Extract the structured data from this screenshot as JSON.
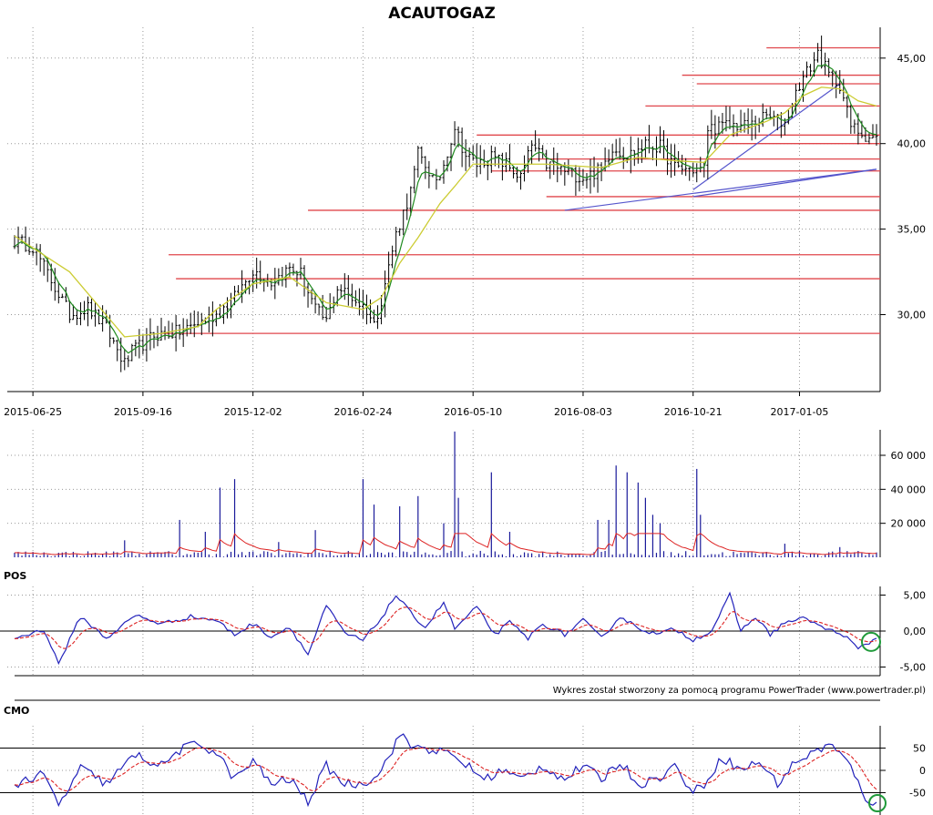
{
  "chart_data": {
    "title": "ACAUTOGAZ",
    "credit": "Wykres został stworzony za pomocą programu PowerTrader (www.powertrader.pl)",
    "x_dates": [
      "2015-06-25",
      "2015-09-16",
      "2015-12-02",
      "2016-02-24",
      "2016-05-10",
      "2016-08-03",
      "2016-10-21",
      "2017-01-05"
    ],
    "price_panel": {
      "type": "candlestick",
      "y_ticks": [
        "45,00",
        "40,00",
        "35,00",
        "30,00"
      ],
      "y_tick_values": [
        45,
        40,
        35,
        30
      ],
      "ylim": [
        25.5,
        46.8
      ],
      "close_path": [
        [
          0,
          34.3
        ],
        [
          5,
          34.0
        ],
        [
          10,
          32.0
        ],
        [
          15,
          30.0
        ],
        [
          20,
          30.4
        ],
        [
          25,
          29.2
        ],
        [
          30,
          27.1
        ],
        [
          32,
          27.8
        ],
        [
          38,
          28.8
        ],
        [
          45,
          29.0
        ],
        [
          50,
          29.5
        ],
        [
          55,
          30.0
        ],
        [
          60,
          31.0
        ],
        [
          65,
          32.6
        ],
        [
          70,
          31.9
        ],
        [
          75,
          32.7
        ],
        [
          78,
          32.4
        ],
        [
          82,
          30.3
        ],
        [
          85,
          29.6
        ],
        [
          88,
          31.6
        ],
        [
          92,
          31.0
        ],
        [
          96,
          30.3
        ],
        [
          98,
          29.4
        ],
        [
          100,
          30.9
        ],
        [
          104,
          34.7
        ],
        [
          108,
          37.2
        ],
        [
          110,
          39.4
        ],
        [
          113,
          38.4
        ],
        [
          115,
          37.5
        ],
        [
          117,
          38.8
        ],
        [
          120,
          41.0
        ],
        [
          123,
          39.3
        ],
        [
          126,
          38.8
        ],
        [
          130,
          39.2
        ],
        [
          134,
          38.8
        ],
        [
          138,
          38.0
        ],
        [
          141,
          39.9
        ],
        [
          145,
          38.8
        ],
        [
          150,
          38.4
        ],
        [
          155,
          38.0
        ],
        [
          160,
          38.5
        ],
        [
          163,
          39.8
        ],
        [
          167,
          39.3
        ],
        [
          172,
          39.9
        ],
        [
          176,
          39.8
        ],
        [
          180,
          38.6
        ],
        [
          184,
          38.5
        ],
        [
          188,
          38.5
        ],
        [
          189,
          40.9
        ],
        [
          193,
          41.0
        ],
        [
          197,
          41.1
        ],
        [
          200,
          41.0
        ],
        [
          205,
          41.6
        ],
        [
          210,
          41.2
        ],
        [
          214,
          43.5
        ],
        [
          217,
          44.5
        ],
        [
          219,
          45.3
        ],
        [
          222,
          44.0
        ],
        [
          225,
          43.5
        ],
        [
          228,
          41.0
        ],
        [
          232,
          40.5
        ],
        [
          235,
          40.3
        ]
      ],
      "sma_path": [
        [
          0,
          34.6
        ],
        [
          15,
          32.5
        ],
        [
          30,
          28.7
        ],
        [
          40,
          28.9
        ],
        [
          50,
          29.3
        ],
        [
          55,
          30.3
        ],
        [
          65,
          31.8
        ],
        [
          75,
          32.2
        ],
        [
          85,
          30.7
        ],
        [
          95,
          30.3
        ],
        [
          100,
          31.0
        ],
        [
          105,
          33.0
        ],
        [
          110,
          34.5
        ],
        [
          116,
          36.5
        ],
        [
          120,
          37.5
        ],
        [
          125,
          38.8
        ],
        [
          135,
          38.8
        ],
        [
          145,
          38.8
        ],
        [
          160,
          38.6
        ],
        [
          170,
          39.2
        ],
        [
          180,
          39.0
        ],
        [
          188,
          38.9
        ],
        [
          195,
          40.5
        ],
        [
          205,
          41.3
        ],
        [
          210,
          41.8
        ],
        [
          215,
          42.8
        ],
        [
          220,
          43.3
        ],
        [
          225,
          43.2
        ],
        [
          230,
          42.5
        ],
        [
          235,
          42.2
        ]
      ],
      "horizontal_levels": [
        45.6,
        44.0,
        43.5,
        42.2,
        40.5,
        40.0,
        39.1,
        38.4,
        36.9,
        36.1,
        33.5,
        32.1,
        28.9
      ],
      "trendlines": [
        [
          [
            150,
            36.1
          ],
          [
            235,
            38.5
          ]
        ],
        [
          [
            185,
            36.9
          ],
          [
            235,
            38.5
          ]
        ],
        [
          [
            185,
            37.3
          ],
          [
            225,
            43.5
          ]
        ]
      ]
    },
    "volume_panel": {
      "type": "bar",
      "y_ticks": [
        "60 000",
        "40 000",
        "20 000"
      ],
      "y_tick_values": [
        60000,
        40000,
        20000
      ],
      "ylim": [
        0,
        75000
      ]
    },
    "pos_panel": {
      "type": "line",
      "label": "POS",
      "y_ticks": [
        "5,00",
        "0,00",
        "-5,00"
      ],
      "y_tick_values": [
        5,
        0,
        -5
      ],
      "ylim": [
        -6.2,
        6.2
      ],
      "series_points": [
        [
          0,
          -1.0
        ],
        [
          8,
          0.2
        ],
        [
          12,
          -4.5
        ],
        [
          18,
          2.0
        ],
        [
          25,
          -1.0
        ],
        [
          33,
          2.2
        ],
        [
          40,
          1.0
        ],
        [
          48,
          2.0
        ],
        [
          55,
          1.5
        ],
        [
          60,
          -0.5
        ],
        [
          65,
          1.0
        ],
        [
          70,
          -0.8
        ],
        [
          75,
          0.6
        ],
        [
          80,
          -3.3
        ],
        [
          85,
          3.5
        ],
        [
          90,
          -0.3
        ],
        [
          95,
          -1.3
        ],
        [
          100,
          1.8
        ],
        [
          104,
          5.0
        ],
        [
          108,
          2.5
        ],
        [
          112,
          0.5
        ],
        [
          117,
          4.0
        ],
        [
          120,
          0.3
        ],
        [
          126,
          3.3
        ],
        [
          131,
          -0.5
        ],
        [
          135,
          1.2
        ],
        [
          140,
          -1.0
        ],
        [
          144,
          1.0
        ],
        [
          150,
          -0.5
        ],
        [
          155,
          1.5
        ],
        [
          160,
          -1.0
        ],
        [
          165,
          2.0
        ],
        [
          170,
          0.5
        ],
        [
          175,
          -0.5
        ],
        [
          180,
          0.3
        ],
        [
          185,
          -1.2
        ],
        [
          190,
          0.0
        ],
        [
          195,
          5.0
        ],
        [
          198,
          0.0
        ],
        [
          202,
          2.0
        ],
        [
          206,
          -0.5
        ],
        [
          210,
          1.2
        ],
        [
          216,
          1.8
        ],
        [
          220,
          0.5
        ],
        [
          226,
          -0.5
        ],
        [
          230,
          -2.5
        ],
        [
          235,
          -1.0
        ]
      ]
    },
    "cmo_panel": {
      "type": "line",
      "label": "CMO",
      "y_ticks": [
        "50",
        "0",
        "-50"
      ],
      "y_tick_values": [
        50,
        0,
        -50
      ],
      "ylim": [
        -100,
        100
      ],
      "series_points": [
        [
          0,
          -30
        ],
        [
          8,
          -10
        ],
        [
          12,
          -80
        ],
        [
          18,
          5
        ],
        [
          25,
          -30
        ],
        [
          33,
          35
        ],
        [
          40,
          10
        ],
        [
          45,
          45
        ],
        [
          50,
          60
        ],
        [
          55,
          40
        ],
        [
          60,
          -20
        ],
        [
          65,
          20
        ],
        [
          70,
          -30
        ],
        [
          75,
          -20
        ],
        [
          80,
          -70
        ],
        [
          85,
          10
        ],
        [
          90,
          -30
        ],
        [
          95,
          -30
        ],
        [
          100,
          0
        ],
        [
          105,
          80
        ],
        [
          108,
          55
        ],
        [
          112,
          50
        ],
        [
          117,
          40
        ],
        [
          122,
          20
        ],
        [
          128,
          -20
        ],
        [
          133,
          0
        ],
        [
          138,
          -20
        ],
        [
          144,
          10
        ],
        [
          150,
          -20
        ],
        [
          155,
          10
        ],
        [
          160,
          -20
        ],
        [
          165,
          20
        ],
        [
          170,
          -30
        ],
        [
          175,
          -20
        ],
        [
          180,
          10
        ],
        [
          185,
          -50
        ],
        [
          188,
          -30
        ],
        [
          193,
          30
        ],
        [
          198,
          0
        ],
        [
          203,
          20
        ],
        [
          208,
          -30
        ],
        [
          213,
          20
        ],
        [
          218,
          40
        ],
        [
          222,
          60
        ],
        [
          227,
          20
        ],
        [
          232,
          -60
        ],
        [
          235,
          -80
        ]
      ]
    }
  }
}
